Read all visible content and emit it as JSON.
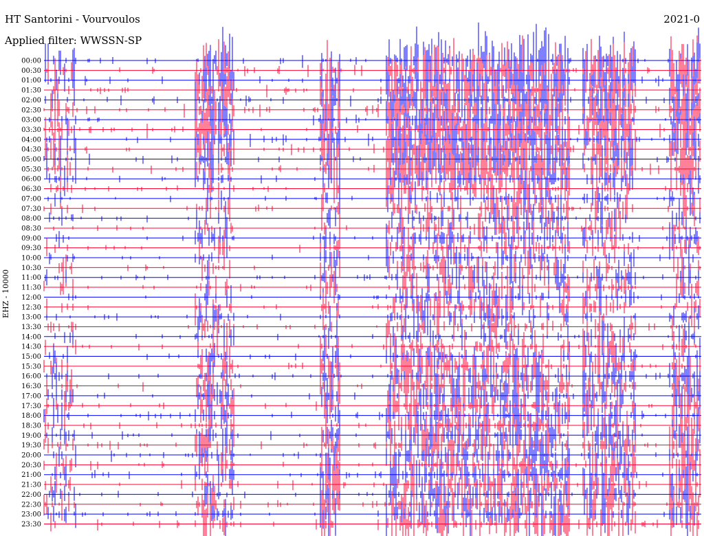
{
  "chart_data": {
    "type": "line",
    "title": "HT Santorini - Vourvoulos",
    "subtitle": "Applied filter: WWSSN-SP",
    "date": "2021-0",
    "ylabel": "EHZ - 10000",
    "rows": [
      "00:00",
      "00:30",
      "01:00",
      "01:30",
      "02:00",
      "02:30",
      "03:00",
      "03:30",
      "04:00",
      "04:30",
      "05:00",
      "05:30",
      "06:00",
      "06:30",
      "07:00",
      "07:30",
      "08:00",
      "08:30",
      "09:00",
      "09:30",
      "10:00",
      "10:30",
      "11:00",
      "11:30",
      "12:00",
      "12:30",
      "13:00",
      "13:30",
      "14:00",
      "14:30",
      "15:00",
      "15:30",
      "16:00",
      "16:30",
      "17:00",
      "17:30",
      "18:00",
      "18:30",
      "19:00",
      "19:30",
      "20:00",
      "20:30",
      "21:00",
      "21:30",
      "22:00",
      "22:30",
      "23:00",
      "23:30"
    ],
    "colors": {
      "even_rows": "#0000ff",
      "odd_rows": "#ff0033"
    },
    "activity_bands": [
      {
        "from": 0.0,
        "to": 0.05,
        "level": 0.6
      },
      {
        "from": 0.23,
        "to": 0.29,
        "level": 0.9
      },
      {
        "from": 0.42,
        "to": 0.45,
        "level": 1.0
      },
      {
        "from": 0.52,
        "to": 0.8,
        "level": 1.0
      },
      {
        "from": 0.82,
        "to": 0.9,
        "level": 0.9
      },
      {
        "from": 0.95,
        "to": 1.0,
        "level": 1.0
      }
    ]
  }
}
